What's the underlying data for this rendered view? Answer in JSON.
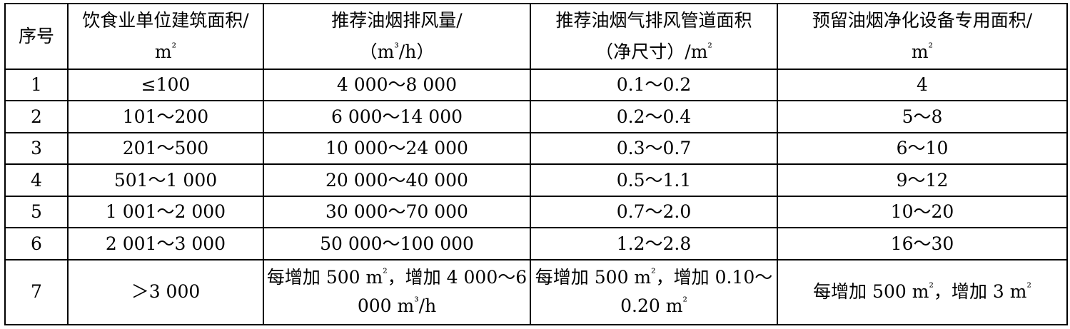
{
  "table": {
    "headers": [
      {
        "line1": "序号",
        "line2": ""
      },
      {
        "line1": "饮食业单位建筑面积/",
        "line2": "m²"
      },
      {
        "line1": "推荐油烟排风量/",
        "line2": "（m³/h）"
      },
      {
        "line1": "推荐油烟气排风管道面积",
        "line2": "（净尺寸）/m²"
      },
      {
        "line1": "预留油烟净化设备专用面积/",
        "line2": "m²"
      }
    ],
    "rows": [
      [
        "1",
        "≤100",
        "4 000～8 000",
        "0.1～0.2",
        "4"
      ],
      [
        "2",
        "101～200",
        "6 000～14 000",
        "0.2～0.4",
        "5～8"
      ],
      [
        "3",
        "201～500",
        "10 000～24 000",
        "0.3～0.7",
        "6～10"
      ],
      [
        "4",
        "501～1 000",
        "20 000～40 000",
        "0.5～1.1",
        "9～12"
      ],
      [
        "5",
        "1 001～2 000",
        "30 000～70 000",
        "0.7～2.0",
        "10～20"
      ],
      [
        "6",
        "2 001～3 000",
        "50 000～100 000",
        "1.2～2.8",
        "16～30"
      ]
    ],
    "last_row": {
      "no": "7",
      "area": "＞3 000",
      "airflow_line1": "每增加 500 m²，增加 4 000～6",
      "airflow_line2": "000 m³/h",
      "duct_line1": "每增加 500 m²，增加 0.10～",
      "duct_line2": "0.20 m²",
      "equipment": "每增加 500 m²，增加 3 m²"
    }
  }
}
